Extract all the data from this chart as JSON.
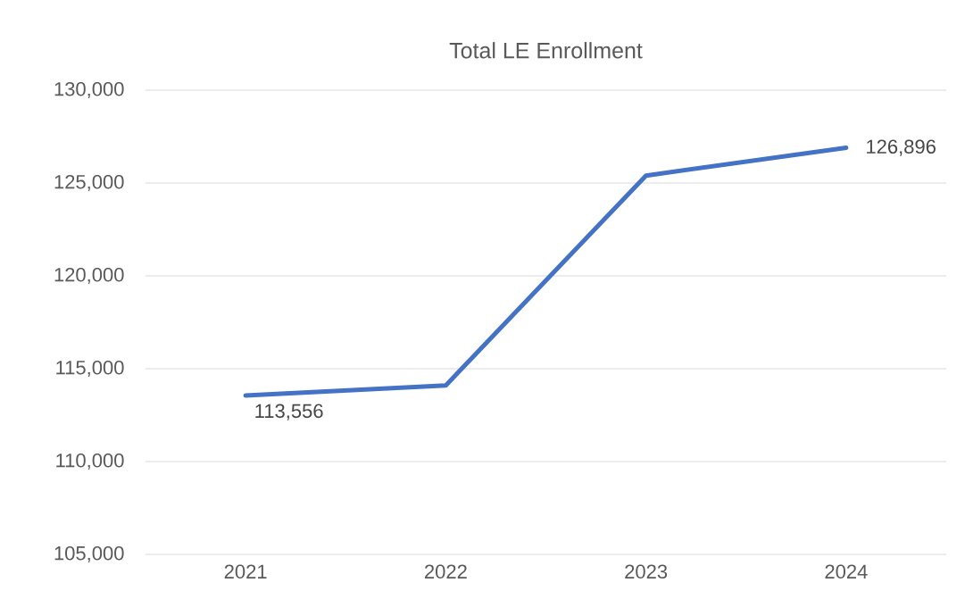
{
  "chart_data": {
    "type": "line",
    "title": "Total LE Enrollment",
    "categories": [
      "2021",
      "2022",
      "2023",
      "2024"
    ],
    "values": [
      113556,
      114100,
      125400,
      126896
    ],
    "value_labels": [
      "113,556",
      null,
      null,
      "126,896"
    ],
    "color": "#4472c4",
    "ylim": [
      105000,
      130000
    ],
    "yticks": [
      {
        "value": 105000,
        "label": "105,000"
      },
      {
        "value": 110000,
        "label": "110,000"
      },
      {
        "value": 115000,
        "label": "115,000"
      },
      {
        "value": 120000,
        "label": "120,000"
      },
      {
        "value": 125000,
        "label": "125,000"
      },
      {
        "value": 130000,
        "label": "130,000"
      }
    ],
    "grid": "y",
    "marker": "none"
  }
}
